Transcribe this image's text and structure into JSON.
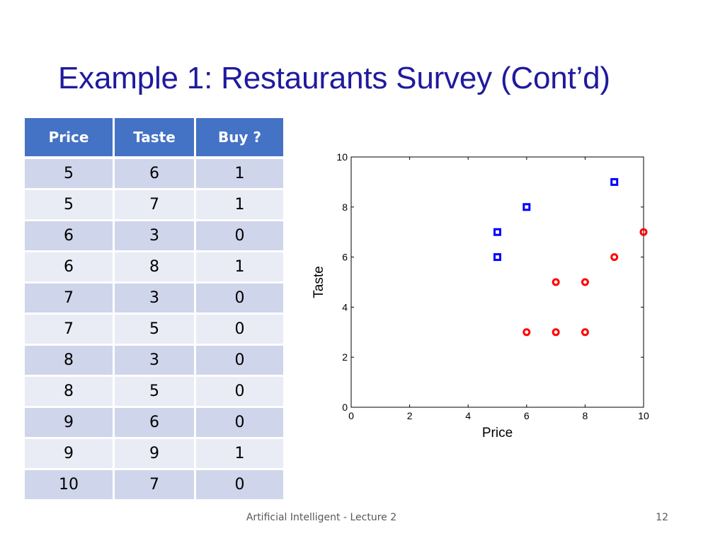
{
  "slide": {
    "title": "Example 1: Restaurants Survey (Cont’d)",
    "footer": "Artificial Intelligent - Lecture 2",
    "page_number": "12"
  },
  "table": {
    "headers": [
      "Price",
      "Taste",
      "Buy ?"
    ],
    "rows": [
      [
        "5",
        "6",
        "1"
      ],
      [
        "5",
        "7",
        "1"
      ],
      [
        "6",
        "3",
        "0"
      ],
      [
        "6",
        "8",
        "1"
      ],
      [
        "7",
        "3",
        "0"
      ],
      [
        "7",
        "5",
        "0"
      ],
      [
        "8",
        "3",
        "0"
      ],
      [
        "8",
        "5",
        "0"
      ],
      [
        "9",
        "6",
        "0"
      ],
      [
        "9",
        "9",
        "1"
      ],
      [
        "10",
        "7",
        "0"
      ]
    ]
  },
  "chart_data": {
    "type": "scatter",
    "xlabel": "Price",
    "ylabel": "Taste",
    "xlim": [
      0,
      10
    ],
    "ylim": [
      0,
      10
    ],
    "xticks": [
      "0",
      "2",
      "4",
      "6",
      "8",
      "10"
    ],
    "yticks": [
      "0",
      "2",
      "4",
      "6",
      "8",
      "10"
    ],
    "grid": false,
    "series": [
      {
        "marker": "square",
        "color": "#0000ff",
        "points": [
          [
            5,
            6
          ],
          [
            5,
            7
          ],
          [
            6,
            8
          ],
          [
            9,
            9
          ]
        ]
      },
      {
        "marker": "circle",
        "color": "#ff0000",
        "points": [
          [
            6,
            3
          ],
          [
            7,
            3
          ],
          [
            7,
            5
          ],
          [
            8,
            3
          ],
          [
            8,
            5
          ],
          [
            9,
            6
          ],
          [
            10,
            7
          ]
        ]
      }
    ]
  }
}
